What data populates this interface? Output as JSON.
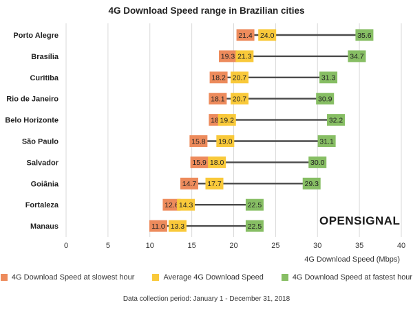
{
  "chart_data": {
    "type": "range-dot",
    "title": "4G Download Speed range in Brazilian cities",
    "xlabel": "4G Download Speed (Mbps)",
    "xlim": [
      0,
      40
    ],
    "xticks": [
      0,
      5,
      10,
      15,
      20,
      25,
      30,
      35,
      40
    ],
    "grid": "vertical",
    "legend_position": "bottom",
    "categories": [
      "Porto Alegre",
      "Brasília",
      "Curitiba",
      "Rio de Janeiro",
      "Belo Horizonte",
      "São Paulo",
      "Salvador",
      "Goiânia",
      "Fortaleza",
      "Manaus"
    ],
    "series": [
      {
        "name": "4G Download Speed at slowest hour",
        "color": "#ED8B5C",
        "values": [
          21.4,
          19.3,
          18.2,
          18.1,
          18.1,
          15.8,
          15.9,
          14.7,
          12.6,
          11.0
        ]
      },
      {
        "name": "Average 4G Download Speed",
        "color": "#F9C93A",
        "values": [
          24.0,
          21.3,
          20.7,
          20.7,
          19.2,
          19.0,
          18.0,
          17.7,
          14.3,
          13.3
        ]
      },
      {
        "name": "4G Download Speed at fastest hour",
        "color": "#87BE64",
        "values": [
          35.6,
          34.7,
          31.3,
          30.9,
          32.2,
          31.1,
          30.0,
          29.3,
          22.5,
          22.5
        ]
      }
    ]
  },
  "footnote": "Data collection period: January 1 - December 31, 2018",
  "brand": {
    "name": "OPENSIGNAL",
    "icon": "signal-icon"
  }
}
